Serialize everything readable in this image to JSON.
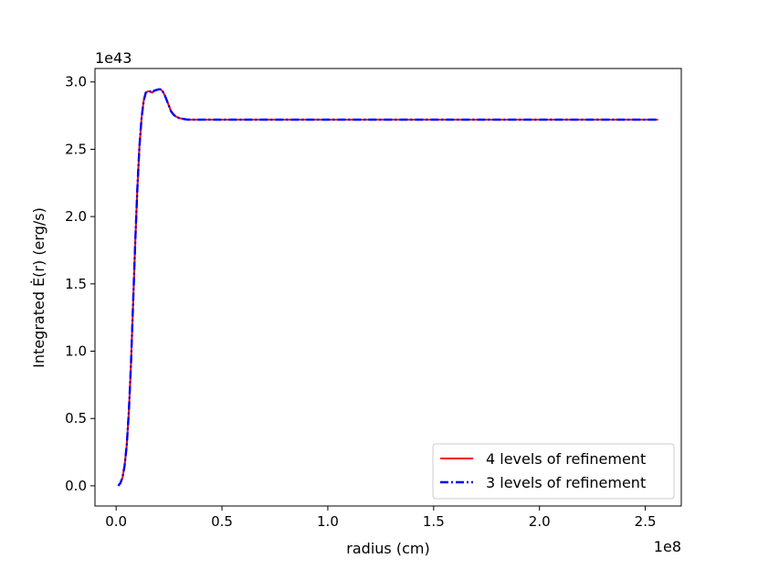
{
  "chart_data": {
    "type": "line",
    "title": "",
    "xlabel": "radius (cm)",
    "ylabel": "Integrated Ė(r) (erg/s)",
    "x_scale_label": "1e8",
    "y_scale_label": "1e43",
    "xlim": [
      -0.1,
      2.67
    ],
    "ylim": [
      -0.15,
      3.1
    ],
    "x_ticks": [
      0.0,
      0.5,
      1.0,
      1.5,
      2.0,
      2.5
    ],
    "x_tick_labels": [
      "0.0",
      "0.5",
      "1.0",
      "1.5",
      "2.0",
      "2.5"
    ],
    "y_ticks": [
      0.0,
      0.5,
      1.0,
      1.5,
      2.0,
      2.5,
      3.0
    ],
    "y_tick_labels": [
      "0.0",
      "0.5",
      "1.0",
      "1.5",
      "2.0",
      "2.5",
      "3.0"
    ],
    "grid": false,
    "legend_position": "lower-right",
    "series": [
      {
        "name": "4 levels of refinement",
        "color": "#ff0000",
        "style": "solid",
        "x": [
          0.01,
          0.02,
          0.03,
          0.04,
          0.05,
          0.06,
          0.07,
          0.08,
          0.09,
          0.1,
          0.11,
          0.12,
          0.13,
          0.14,
          0.15,
          0.16,
          0.17,
          0.18,
          0.19,
          0.2,
          0.21,
          0.22,
          0.23,
          0.24,
          0.25,
          0.26,
          0.27,
          0.28,
          0.3,
          0.32,
          0.34,
          0.36,
          0.38,
          0.4,
          0.45,
          0.5,
          0.75,
          1.0,
          1.25,
          1.5,
          1.75,
          2.0,
          2.25,
          2.56
        ],
        "y": [
          0.0,
          0.02,
          0.06,
          0.15,
          0.3,
          0.55,
          0.9,
          1.35,
          1.8,
          2.2,
          2.52,
          2.73,
          2.86,
          2.92,
          2.93,
          2.93,
          2.92,
          2.935,
          2.94,
          2.945,
          2.945,
          2.93,
          2.9,
          2.86,
          2.82,
          2.78,
          2.76,
          2.745,
          2.73,
          2.725,
          2.72,
          2.72,
          2.72,
          2.72,
          2.72,
          2.72,
          2.72,
          2.72,
          2.72,
          2.72,
          2.72,
          2.72,
          2.72,
          2.72
        ]
      },
      {
        "name": "3 levels of refinement",
        "color": "#0000ff",
        "style": "dashdot",
        "x": [
          0.01,
          0.02,
          0.03,
          0.04,
          0.05,
          0.06,
          0.07,
          0.08,
          0.09,
          0.1,
          0.11,
          0.12,
          0.13,
          0.14,
          0.15,
          0.16,
          0.17,
          0.18,
          0.19,
          0.2,
          0.21,
          0.22,
          0.23,
          0.24,
          0.25,
          0.26,
          0.27,
          0.28,
          0.3,
          0.32,
          0.34,
          0.36,
          0.38,
          0.4,
          0.45,
          0.5,
          0.75,
          1.0,
          1.25,
          1.5,
          1.75,
          2.0,
          2.25,
          2.56
        ],
        "y": [
          0.0,
          0.02,
          0.06,
          0.15,
          0.3,
          0.55,
          0.9,
          1.35,
          1.8,
          2.2,
          2.52,
          2.73,
          2.86,
          2.92,
          2.93,
          2.93,
          2.92,
          2.935,
          2.94,
          2.945,
          2.945,
          2.93,
          2.9,
          2.86,
          2.82,
          2.78,
          2.76,
          2.745,
          2.73,
          2.725,
          2.72,
          2.72,
          2.72,
          2.72,
          2.72,
          2.72,
          2.72,
          2.72,
          2.72,
          2.72,
          2.72,
          2.72,
          2.72,
          2.72
        ]
      }
    ]
  }
}
